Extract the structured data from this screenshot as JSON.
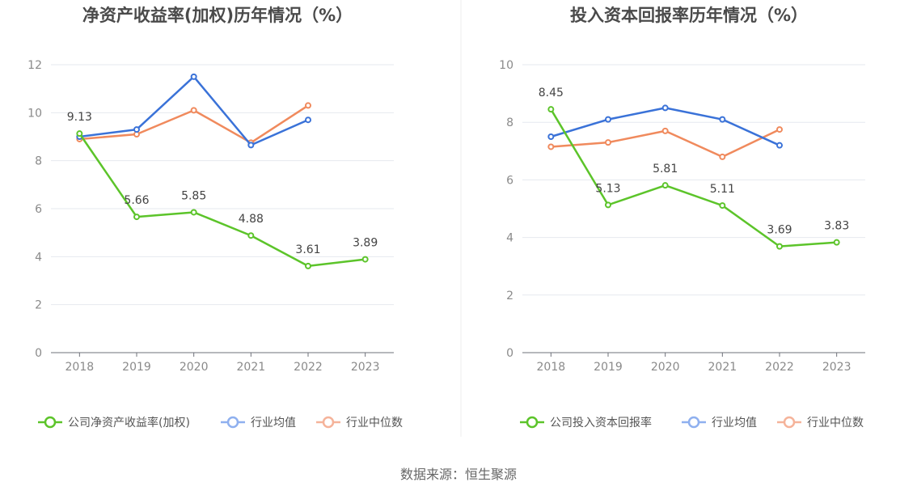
{
  "source": "数据来源：恒生聚源",
  "colors": {
    "company": "#5cc42a",
    "avg": "#3a72d8",
    "median": "#f08a5d",
    "legend_avg": "#8fb0ef",
    "legend_median": "#f5b39a"
  },
  "chart_data": [
    {
      "type": "line",
      "title": "净资产收益率(加权)历年情况（%）",
      "categories": [
        "2018",
        "2019",
        "2020",
        "2021",
        "2022",
        "2023"
      ],
      "ylim": [
        0,
        12
      ],
      "yticks": [
        "0",
        "2",
        "4",
        "6",
        "8",
        "10",
        "12"
      ],
      "grid": true,
      "legend": "bottom",
      "series": [
        {
          "name": "公司净资产收益率(加权)",
          "key": "company",
          "values": [
            9.13,
            5.66,
            5.85,
            4.88,
            3.61,
            3.89
          ],
          "labels": [
            "9.13",
            "5.66",
            "5.85",
            "4.88",
            "3.61",
            "3.89"
          ]
        },
        {
          "name": "行业均值",
          "key": "avg",
          "values": [
            9.0,
            9.3,
            11.5,
            8.65,
            9.7,
            null
          ]
        },
        {
          "name": "行业中位数",
          "key": "median",
          "values": [
            8.9,
            9.1,
            10.1,
            8.75,
            10.3,
            null
          ]
        }
      ]
    },
    {
      "type": "line",
      "title": "投入资本回报率历年情况（%）",
      "categories": [
        "2018",
        "2019",
        "2020",
        "2021",
        "2022",
        "2023"
      ],
      "ylim": [
        0,
        10
      ],
      "yticks": [
        "0",
        "2",
        "4",
        "6",
        "8",
        "10"
      ],
      "grid": true,
      "legend": "bottom",
      "series": [
        {
          "name": "公司投入资本回报率",
          "key": "company",
          "values": [
            8.45,
            5.13,
            5.81,
            5.11,
            3.69,
            3.83
          ],
          "labels": [
            "8.45",
            "5.13",
            "5.81",
            "5.11",
            "3.69",
            "3.83"
          ]
        },
        {
          "name": "行业均值",
          "key": "avg",
          "values": [
            7.5,
            8.1,
            8.5,
            8.1,
            7.2,
            null
          ]
        },
        {
          "name": "行业中位数",
          "key": "median",
          "values": [
            7.15,
            7.3,
            7.7,
            6.8,
            7.75,
            null
          ]
        }
      ]
    }
  ]
}
